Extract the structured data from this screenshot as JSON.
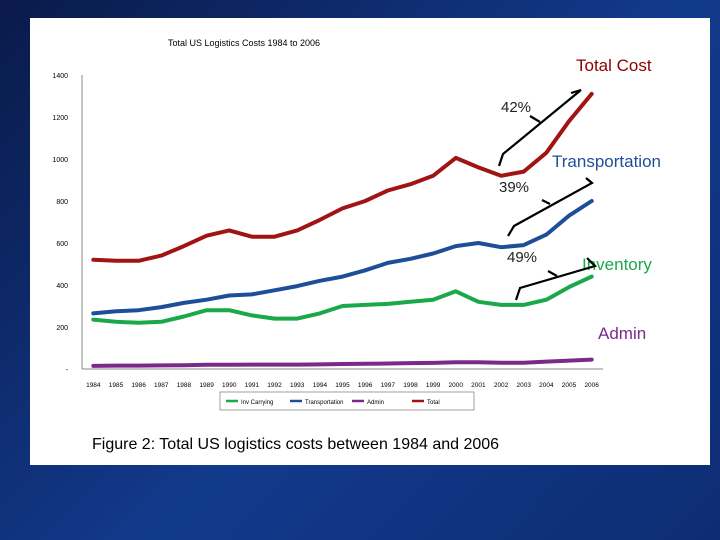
{
  "caption": "Figure 2: Total US logistics costs between 1984 and 2006",
  "callouts": {
    "total": {
      "text": "Total Cost",
      "color": "#8b0000"
    },
    "transportation": {
      "text": "Transportation",
      "color": "#1f4e99"
    },
    "inventory": {
      "text": "Inventory",
      "color": "#1aa84a"
    },
    "admin": {
      "text": "Admin",
      "color": "#7b2a8c"
    }
  },
  "percentages": {
    "total": "42%",
    "transportation": "39%",
    "inventory": "49%"
  },
  "chart_data": {
    "type": "line",
    "title": "Total US Logistics Costs 1984 to 2006",
    "xlabel": "",
    "ylabel": "",
    "ylim": [
      0,
      1400
    ],
    "yticks": [
      0,
      200,
      400,
      600,
      800,
      1000,
      1200,
      1400
    ],
    "ytick_labels": [
      "-",
      "200",
      "400",
      "600",
      "800",
      "1000",
      "1200",
      "1400"
    ],
    "categories": [
      "1984",
      "1985",
      "1986",
      "1987",
      "1988",
      "1989",
      "1990",
      "1991",
      "1992",
      "1993",
      "1994",
      "1995",
      "1996",
      "1997",
      "1998",
      "1999",
      "2000",
      "2001",
      "2002",
      "2003",
      "2004",
      "2005",
      "2006"
    ],
    "grid": false,
    "legend_position": "bottom",
    "series": [
      {
        "name": "Inv Carrying",
        "color": "#1aa84a",
        "values": [
          235,
          225,
          220,
          225,
          250,
          280,
          280,
          255,
          240,
          240,
          265,
          300,
          305,
          310,
          320,
          330,
          370,
          320,
          305,
          305,
          330,
          390,
          440
        ]
      },
      {
        "name": "Transportation",
        "color": "#1f4e99",
        "values": [
          265,
          275,
          280,
          295,
          315,
          330,
          350,
          355,
          375,
          395,
          420,
          440,
          470,
          505,
          525,
          550,
          585,
          600,
          580,
          590,
          640,
          730,
          800
        ]
      },
      {
        "name": "Admin",
        "color": "#7b2a8c",
        "values": [
          15,
          16,
          16,
          17,
          18,
          20,
          20,
          21,
          21,
          21,
          22,
          24,
          25,
          26,
          28,
          29,
          32,
          32,
          30,
          30,
          35,
          40,
          45
        ]
      },
      {
        "name": "Total",
        "color": "#a01414",
        "values": [
          520,
          515,
          515,
          540,
          585,
          635,
          660,
          630,
          630,
          660,
          710,
          765,
          800,
          850,
          880,
          920,
          1005,
          960,
          920,
          940,
          1030,
          1180,
          1310
        ]
      }
    ]
  }
}
